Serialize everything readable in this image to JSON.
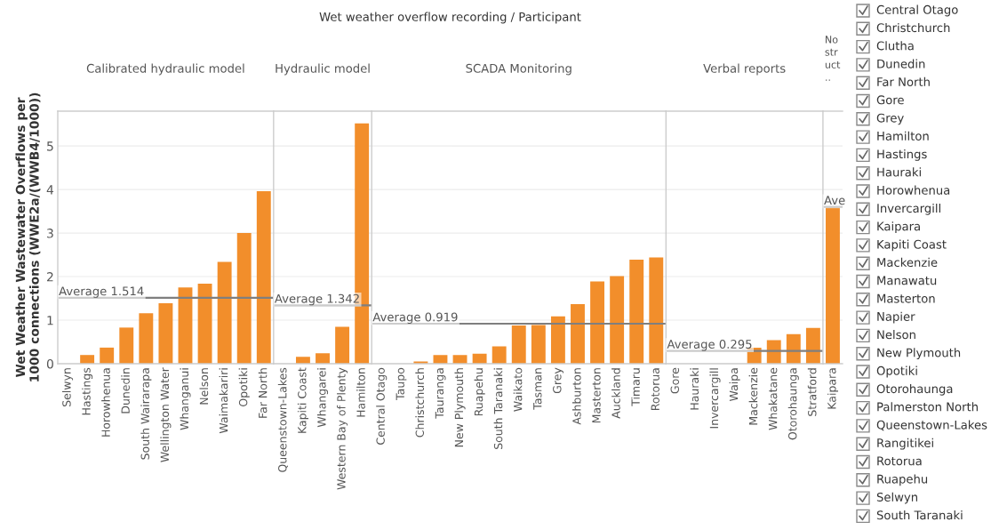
{
  "chart_data": [
    {
      "type": "bar",
      "subtitle": "Calibrated hydraulic model",
      "ylabel": "Wet Weather Wastewater Overflows per 1000 connections (WWE2a/(WWB4/1000))",
      "color": "#f28e2b",
      "grid": "y",
      "categories": [
        "Selwyn",
        "Hastings",
        "Horowhenua",
        "Dunedin",
        "South Wairarapa",
        "Wellington Water",
        "Whanganui",
        "Nelson",
        "Waimakariri",
        "Opotiki",
        "Far North"
      ],
      "values": [
        0,
        0.2,
        0.37,
        0.83,
        1.16,
        1.39,
        1.75,
        1.84,
        2.34,
        3.0,
        3.96
      ],
      "ylim": [
        0,
        5.8
      ],
      "yticks": [
        0,
        1,
        2,
        3,
        4,
        5
      ],
      "ref_lines": [
        {
          "axis": "y",
          "value": 1.514,
          "label": "Average 1.514",
          "color": "#7f7f7f"
        }
      ]
    },
    {
      "type": "bar",
      "subtitle": "Hydraulic model",
      "color": "#f28e2b",
      "grid": "y",
      "tick_labels": "x",
      "categories": [
        "Queenstown-Lakes",
        "Kapiti Coast",
        "Whangarei",
        "Western Bay of Plenty",
        "Hamilton"
      ],
      "values": [
        0,
        0.16,
        0.24,
        0.85,
        5.52
      ],
      "ylim": [
        0,
        5.8
      ],
      "yticks": [
        0,
        1,
        2,
        3,
        4,
        5
      ],
      "ref_lines": [
        {
          "axis": "y",
          "value": 1.342,
          "label": "Average 1.342",
          "color": "#7f7f7f"
        }
      ]
    },
    {
      "type": "bar",
      "title": "Wet weather overflow recording / Participant",
      "subtitle": "SCADA Monitoring",
      "color": "#f28e2b",
      "grid": "y",
      "tick_labels": "x",
      "categories": [
        "Central Otago",
        "Taupo",
        "Christchurch",
        "Tauranga",
        "New Plymouth",
        "Ruapehu",
        "South Taranaki",
        "Waikato",
        "Tasman",
        "Grey",
        "Ashburton",
        "Masterton",
        "Auckland",
        "Timaru",
        "Rotorua"
      ],
      "values": [
        0,
        0,
        0.05,
        0.2,
        0.2,
        0.23,
        0.4,
        0.88,
        0.89,
        1.09,
        1.37,
        1.89,
        2.01,
        2.39,
        2.44
      ],
      "ylim": [
        0,
        5.8
      ],
      "yticks": [
        0,
        1,
        2,
        3,
        4,
        5
      ],
      "ref_lines": [
        {
          "axis": "y",
          "value": 0.919,
          "label": "Average 0.919",
          "color": "#7f7f7f"
        }
      ]
    },
    {
      "type": "bar",
      "subtitle": "Verbal reports",
      "color": "#f28e2b",
      "grid": "y",
      "tick_labels": "x",
      "categories": [
        "Gore",
        "Hauraki",
        "Invercargill",
        "Waipa",
        "Mackenzie",
        "Whakatane",
        "Otorohaunga",
        "Stratford"
      ],
      "values": [
        0,
        0,
        0,
        0,
        0.37,
        0.54,
        0.68,
        0.82
      ],
      "ylim": [
        0,
        5.8
      ],
      "yticks": [
        0,
        1,
        2,
        3,
        4,
        5
      ],
      "ref_lines": [
        {
          "axis": "y",
          "value": 0.295,
          "label": "Average 0.295",
          "color": "#7f7f7f"
        }
      ]
    },
    {
      "type": "bar",
      "subtitle": "No struct..",
      "color": "#f28e2b",
      "grid": "y",
      "tick_labels": "x",
      "categories": [
        "Kaipara"
      ],
      "values": [
        3.6
      ],
      "ylim": [
        0,
        5.8
      ],
      "yticks": [
        0,
        1,
        2,
        3,
        4,
        5
      ],
      "ref_lines": [
        {
          "axis": "y",
          "value": 3.6,
          "label": "Ave",
          "color": "#7f7f7f"
        }
      ]
    },
    {
      "type": "other",
      "annotations": [
        "Central Otago",
        "Christchurch",
        "Clutha",
        "Dunedin",
        "Far North",
        "Gore",
        "Grey",
        "Hamilton",
        "Hastings",
        "Hauraki",
        "Horowhenua",
        "Invercargill",
        "Kaipara",
        "Kapiti Coast",
        "Mackenzie",
        "Manawatu",
        "Masterton",
        "Napier",
        "Nelson",
        "New Plymouth",
        "Opotiki",
        "Otorohaunga",
        "Palmerston North",
        "Queenstown-Lakes",
        "Rangitikei",
        "Rotorua",
        "Ruapehu",
        "Selwyn",
        "South Taranaki"
      ]
    }
  ]
}
